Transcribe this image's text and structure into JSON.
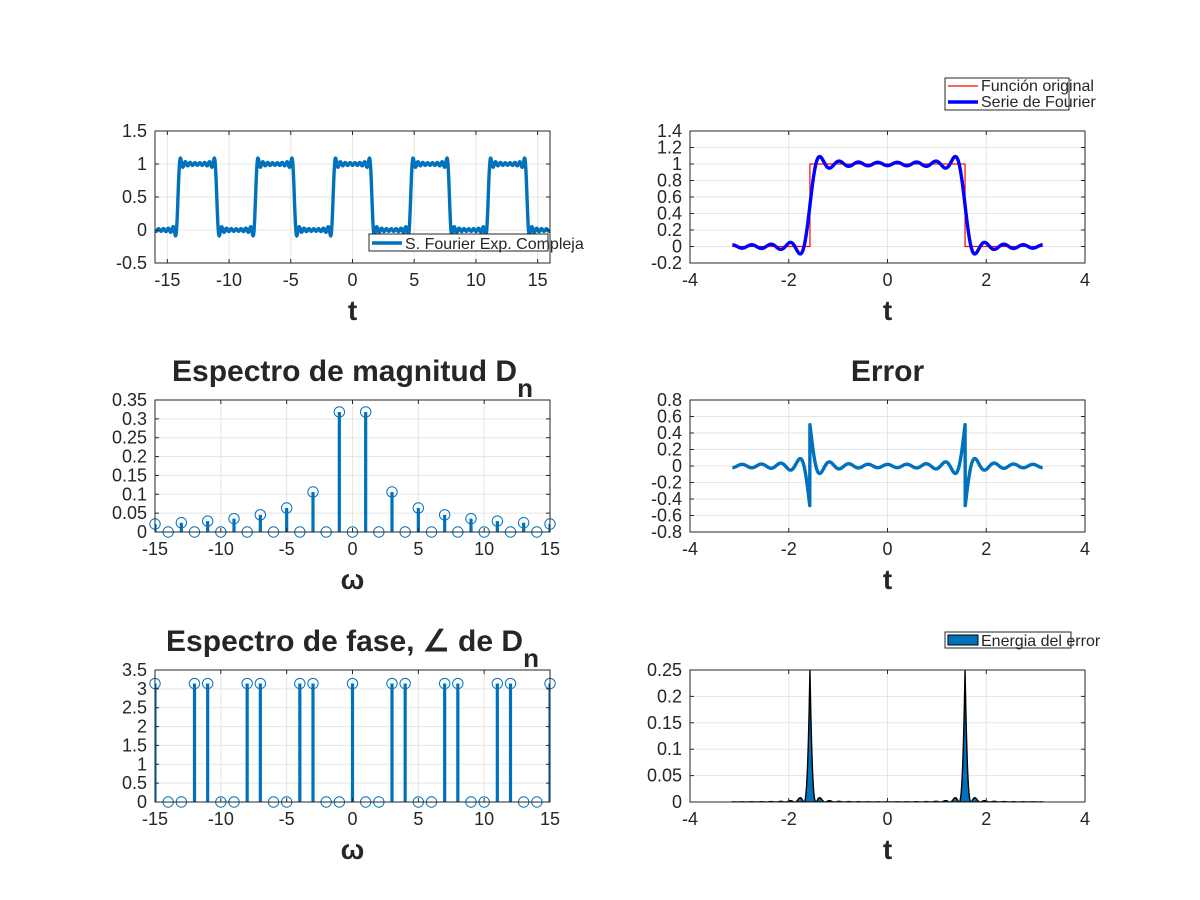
{
  "chart_data": [
    {
      "id": "sq-wave",
      "type": "line",
      "title": "",
      "xlabel": "t",
      "ylabel": "",
      "xlim": [
        -16,
        16
      ],
      "ylim": [
        -0.5,
        1.5
      ],
      "xticks": [
        -15,
        -10,
        -5,
        0,
        5,
        10,
        15
      ],
      "xticklabels": [
        "-15",
        "-10",
        "-5",
        "0",
        "5",
        "10",
        "15"
      ],
      "yticks": [
        -0.5,
        0,
        0.5,
        1,
        1.5
      ],
      "yticklabels": [
        "-0.5",
        "0",
        "0.5",
        "1",
        "1.5"
      ],
      "grid": true,
      "legend_position": "bottom-right",
      "series": [
        {
          "name": "S. Fourier Exp. Compleja",
          "color": "#0072bd",
          "kind": "fourier_square",
          "period": 6.2832,
          "high_start": -1.5708,
          "high_end": 1.5708,
          "harmonics": 15,
          "x_range": [
            -16,
            16
          ]
        }
      ]
    },
    {
      "id": "compare",
      "type": "line",
      "title": "",
      "xlabel": "t",
      "ylabel": "",
      "xlim": [
        -4,
        4
      ],
      "ylim": [
        -0.2,
        1.4
      ],
      "xticks": [
        -4,
        -2,
        0,
        2,
        4
      ],
      "xticklabels": [
        "-4",
        "-2",
        "0",
        "2",
        "4"
      ],
      "yticks": [
        -0.2,
        0,
        0.2,
        0.4,
        0.6,
        0.8,
        1,
        1.2,
        1.4
      ],
      "yticklabels": [
        "-0.2",
        "0",
        "0.2",
        "0.4",
        "0.6",
        "0.8",
        "1",
        "1.2",
        "1.4"
      ],
      "grid": true,
      "legend_position": "outside-top-right",
      "series": [
        {
          "name": "Función original",
          "color": "#ff0000",
          "kind": "square",
          "high_start": -1.5708,
          "high_end": 1.5708,
          "x_range": [
            -3.1416,
            3.1416
          ]
        },
        {
          "name": "Serie de Fourier",
          "color": "#0000ff",
          "kind": "fourier_square",
          "period": 6.2832,
          "high_start": -1.5708,
          "high_end": 1.5708,
          "harmonics": 15,
          "x_range": [
            -3.1416,
            3.1416
          ]
        }
      ]
    },
    {
      "id": "mag",
      "type": "stem",
      "title": "Espectro de magnitud D",
      "title_subscript": "n",
      "xlabel": "ω",
      "ylabel": "",
      "xlim": [
        -15,
        15
      ],
      "ylim": [
        0,
        0.35
      ],
      "xticks": [
        -15,
        -10,
        -5,
        0,
        5,
        10,
        15
      ],
      "xticklabels": [
        "-15",
        "-10",
        "-5",
        "0",
        "5",
        "10",
        "15"
      ],
      "yticks": [
        0,
        0.05,
        0.1,
        0.15,
        0.2,
        0.25,
        0.3,
        0.35
      ],
      "yticklabels": [
        "0",
        "0.05",
        "0.1",
        "0.15",
        "0.2",
        "0.25",
        "0.3",
        "0.35"
      ],
      "grid": true,
      "color": "#0072bd",
      "x": [
        -15,
        -14,
        -13,
        -12,
        -11,
        -10,
        -9,
        -8,
        -7,
        -6,
        -5,
        -4,
        -3,
        -2,
        -1,
        0,
        1,
        2,
        3,
        4,
        5,
        6,
        7,
        8,
        9,
        10,
        11,
        12,
        13,
        14,
        15
      ],
      "y": [
        0.0212,
        0,
        0.0245,
        0,
        0.0289,
        0,
        0.0354,
        0,
        0.0455,
        0,
        0.0637,
        0,
        0.1061,
        0,
        0.3183,
        0,
        0.3183,
        0,
        0.1061,
        0,
        0.0637,
        0,
        0.0455,
        0,
        0.0354,
        0,
        0.0289,
        0,
        0.0245,
        0,
        0.0212
      ]
    },
    {
      "id": "err",
      "type": "line",
      "title": "Error",
      "xlabel": "t",
      "ylabel": "",
      "xlim": [
        -4,
        4
      ],
      "ylim": [
        -0.8,
        0.8
      ],
      "xticks": [
        -4,
        -2,
        0,
        2,
        4
      ],
      "xticklabels": [
        "-4",
        "-2",
        "0",
        "2",
        "4"
      ],
      "yticks": [
        -0.8,
        -0.6,
        -0.4,
        -0.2,
        0,
        0.2,
        0.4,
        0.6,
        0.8
      ],
      "yticklabels": [
        "-0.8",
        "-0.6",
        "-0.4",
        "-0.2",
        "0",
        "0.2",
        "0.4",
        "0.6",
        "0.8"
      ],
      "grid": true,
      "series": [
        {
          "name": "",
          "color": "#0072bd",
          "kind": "fourier_error",
          "period": 6.2832,
          "high_start": -1.5708,
          "high_end": 1.5708,
          "harmonics": 15,
          "x_range": [
            -3.1416,
            3.1416
          ]
        }
      ]
    },
    {
      "id": "phase",
      "type": "stem",
      "title": "Espectro de fase, ∠ de D",
      "title_subscript": "n",
      "xlabel": "ω",
      "ylabel": "",
      "xlim": [
        -15,
        15
      ],
      "ylim": [
        0,
        3.5
      ],
      "xticks": [
        -15,
        -10,
        -5,
        0,
        5,
        10,
        15
      ],
      "xticklabels": [
        "-15",
        "-10",
        "-5",
        "0",
        "5",
        "10",
        "15"
      ],
      "yticks": [
        0,
        0.5,
        1,
        1.5,
        2,
        2.5,
        3,
        3.5
      ],
      "yticklabels": [
        "0",
        "0.5",
        "1",
        "1.5",
        "2",
        "2.5",
        "3",
        "3.5"
      ],
      "grid": true,
      "color": "#0072bd",
      "x": [
        -15,
        -14,
        -13,
        -12,
        -11,
        -10,
        -9,
        -8,
        -7,
        -6,
        -5,
        -4,
        -3,
        -2,
        -1,
        0,
        1,
        2,
        3,
        4,
        5,
        6,
        7,
        8,
        9,
        10,
        11,
        12,
        13,
        14,
        15
      ],
      "y": [
        3.1416,
        0,
        0,
        3.1416,
        3.1416,
        0,
        0,
        3.1416,
        3.1416,
        0,
        0,
        3.1416,
        3.1416,
        0,
        0,
        3.1416,
        0,
        0,
        3.1416,
        3.1416,
        0,
        0,
        3.1416,
        3.1416,
        0,
        0,
        3.1416,
        3.1416,
        0,
        0,
        3.1416
      ]
    },
    {
      "id": "energy",
      "type": "area",
      "title": "",
      "xlabel": "t",
      "ylabel": "",
      "xlim": [
        -4,
        4
      ],
      "ylim": [
        0,
        0.25
      ],
      "xticks": [
        -4,
        -2,
        0,
        2,
        4
      ],
      "xticklabels": [
        "-4",
        "-2",
        "0",
        "2",
        "4"
      ],
      "yticks": [
        0,
        0.05,
        0.1,
        0.15,
        0.2,
        0.25
      ],
      "yticklabels": [
        "0",
        "0.05",
        "0.1",
        "0.15",
        "0.2",
        "0.25"
      ],
      "grid": true,
      "legend_position": "outside-top-right",
      "series": [
        {
          "name": "Energia del error",
          "color": "#0072bd",
          "edge_color": "#000000",
          "kind": "fourier_error_squared",
          "period": 6.2832,
          "high_start": -1.5708,
          "high_end": 1.5708,
          "harmonics": 15,
          "x_range": [
            -3.1416,
            3.1416
          ]
        }
      ]
    }
  ]
}
